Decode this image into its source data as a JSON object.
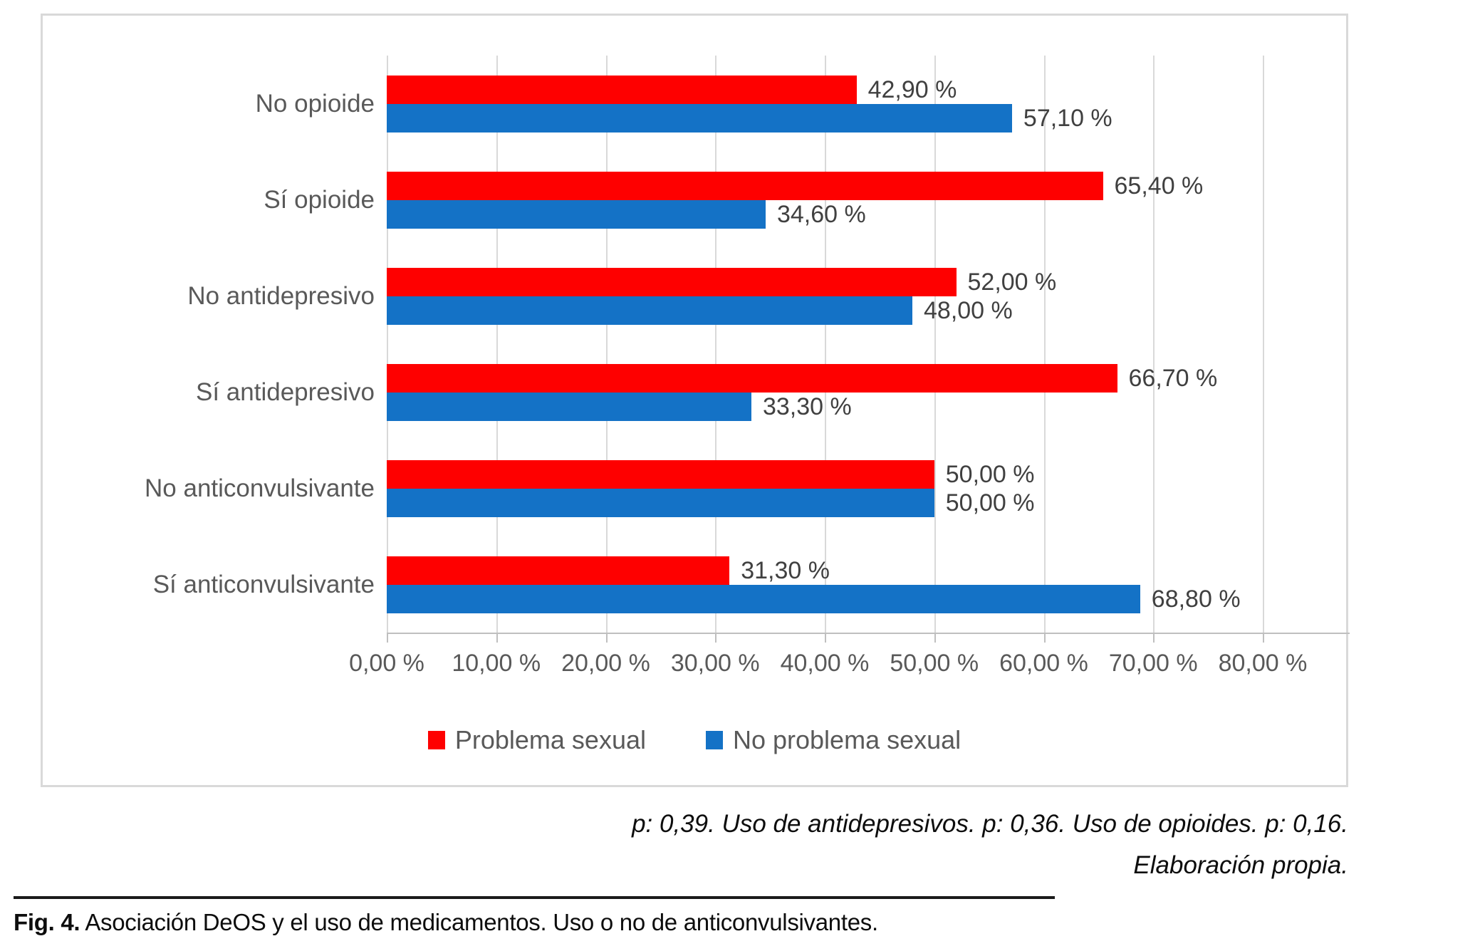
{
  "chart_data": {
    "type": "bar",
    "orientation": "horizontal",
    "title": "",
    "xlabel": "",
    "ylabel": "",
    "grid": true,
    "legend_position": "bottom",
    "categories": [
      "No opioide",
      "Sí opioide",
      "No antidepresivo",
      "Sí antidepresivo",
      "No anticonvulsivante",
      "Sí anticonvulsivante"
    ],
    "series": [
      {
        "name": "Problema sexual",
        "color": "#FE0000",
        "values": [
          42.9,
          65.4,
          52.0,
          66.7,
          50.0,
          31.3
        ],
        "labels": [
          "42,90 %",
          "65,40 %",
          "52,00 %",
          "66,70 %",
          "50,00 %",
          "31,30 %"
        ]
      },
      {
        "name": "No problema sexual",
        "color": "#1472C6",
        "values": [
          57.1,
          34.6,
          48.0,
          33.3,
          50.0,
          68.8
        ],
        "labels": [
          "57,10 %",
          "34,60 %",
          "48,00 %",
          "33,30 %",
          "50,00 %",
          "68,80 %"
        ]
      }
    ],
    "x_axis": {
      "min": 0,
      "max": 80,
      "tick_step": 10,
      "tick_labels": [
        "0,00 %",
        "10,00 %",
        "20,00 %",
        "30,00 %",
        "40,00 %",
        "50,00 %",
        "60,00 %",
        "70,00 %",
        "80,00 %"
      ]
    },
    "colors": {
      "gridline": "#D9D9D9",
      "axis_line": "#BFBFBF",
      "category_text": "#595959",
      "value_text": "#404040"
    }
  },
  "footnote": {
    "line1": "p: 0,39. Uso de antidepresivos. p: 0,36. Uso de opioides. p: 0,16.",
    "line2": "Elaboración propia."
  },
  "caption": {
    "label": "Fig. 4.",
    "text": "Asociación DeOS y el uso de medicamentos. Uso o no de anticonvulsivantes."
  }
}
